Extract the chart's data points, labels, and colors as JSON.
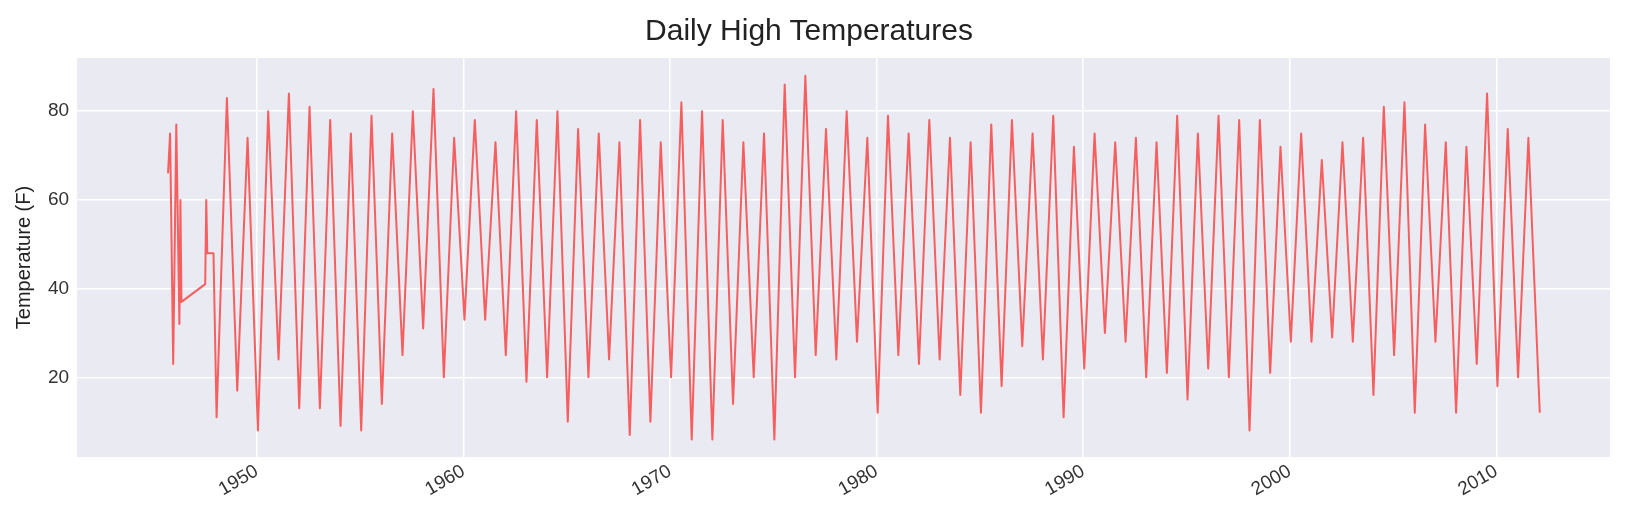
{
  "chart_data": {
    "type": "line",
    "title": "Daily High Temperatures",
    "ylabel": "Temperature (F)",
    "xlim": [
      1941.3,
      2015.5
    ],
    "xticks": [
      1950,
      1960,
      1970,
      1980,
      1990,
      2000,
      2010
    ],
    "ylim": [
      2,
      92
    ],
    "yticks": [
      20,
      40,
      60,
      80
    ],
    "grid": true,
    "legend": false,
    "series": [
      {
        "color": "#f55f5f",
        "x": [
          1945.7,
          1945.8,
          1945.95,
          1946.1,
          1946.25,
          1946.3,
          1946.35,
          1947.5,
          1947.55,
          1947.6,
          1947.9,
          1948.05,
          1948.55,
          1949.05,
          1949.55,
          1950.05,
          1950.55,
          1951.05,
          1951.55,
          1952.05,
          1952.55,
          1953.05,
          1953.55,
          1954.05,
          1954.55,
          1955.05,
          1955.55,
          1956.05,
          1956.55,
          1957.05,
          1957.55,
          1958.05,
          1958.55,
          1959.05,
          1959.55,
          1960.05,
          1960.55,
          1961.05,
          1961.55,
          1962.05,
          1962.55,
          1963.05,
          1963.55,
          1964.05,
          1964.55,
          1965.05,
          1965.55,
          1966.05,
          1966.55,
          1967.05,
          1967.55,
          1968.05,
          1968.55,
          1969.05,
          1969.55,
          1970.05,
          1970.55,
          1971.05,
          1971.55,
          1972.05,
          1972.55,
          1973.05,
          1973.55,
          1974.05,
          1974.55,
          1975.05,
          1975.55,
          1976.05,
          1976.55,
          1977.05,
          1977.55,
          1978.05,
          1978.55,
          1979.05,
          1979.55,
          1980.05,
          1980.55,
          1981.05,
          1981.55,
          1982.05,
          1982.55,
          1983.05,
          1983.55,
          1984.05,
          1984.55,
          1985.05,
          1985.55,
          1986.05,
          1986.55,
          1987.05,
          1987.55,
          1988.05,
          1988.55,
          1989.05,
          1989.55,
          1990.05,
          1990.55,
          1991.05,
          1991.55,
          1992.05,
          1992.55,
          1993.05,
          1993.55,
          1994.05,
          1994.55,
          1995.05,
          1995.55,
          1996.05,
          1996.55,
          1997.05,
          1997.55,
          1998.05,
          1998.55,
          1999.05,
          1999.55,
          2000.05,
          2000.55,
          2001.05,
          2001.55,
          2002.05,
          2002.55,
          2003.05,
          2003.55,
          2004.05,
          2004.55,
          2005.05,
          2005.55,
          2006.05,
          2006.55,
          2007.05,
          2007.55,
          2008.05,
          2008.55,
          2009.05,
          2009.55,
          2010.05,
          2010.55,
          2011.05,
          2011.55,
          2012.1
        ],
        "values": [
          66,
          75,
          23,
          77,
          32,
          60,
          37,
          41,
          60,
          48,
          48,
          11,
          83,
          17,
          74,
          8,
          80,
          24,
          84,
          13,
          81,
          13,
          78,
          9,
          75,
          8,
          79,
          14,
          75,
          25,
          80,
          31,
          85,
          20,
          74,
          33,
          78,
          33,
          73,
          25,
          80,
          19,
          78,
          20,
          80,
          10,
          76,
          20,
          75,
          24,
          73,
          7,
          78,
          10,
          73,
          20,
          82,
          6,
          80,
          6,
          78,
          14,
          73,
          20,
          75,
          6,
          86,
          20,
          88,
          25,
          76,
          24,
          80,
          28,
          74,
          12,
          79,
          25,
          75,
          23,
          78,
          24,
          74,
          16,
          73,
          12,
          77,
          18,
          78,
          27,
          75,
          24,
          79,
          11,
          72,
          22,
          75,
          30,
          73,
          28,
          74,
          20,
          73,
          21,
          79,
          15,
          75,
          22,
          79,
          20,
          78,
          8,
          78,
          21,
          72,
          28,
          75,
          28,
          69,
          29,
          73,
          28,
          74,
          16,
          81,
          25,
          82,
          12,
          77,
          28,
          73,
          12,
          72,
          23,
          84,
          18,
          76,
          20,
          74,
          12
        ]
      }
    ]
  }
}
